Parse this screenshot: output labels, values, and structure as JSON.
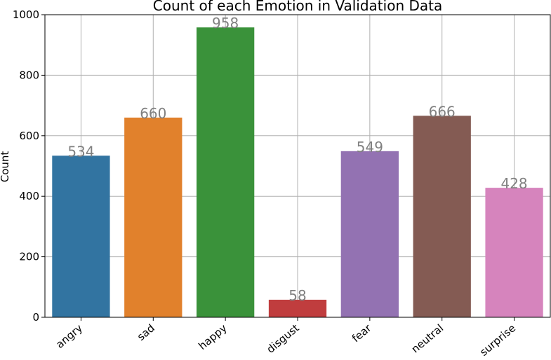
{
  "chart_data": {
    "type": "bar",
    "title": "Count of each Emotion in Validation Data",
    "xlabel": "",
    "ylabel": "Count",
    "ylim": [
      0,
      1000
    ],
    "yticks": [
      0,
      200,
      400,
      600,
      800,
      1000
    ],
    "grid": true,
    "categories": [
      "angry",
      "sad",
      "happy",
      "disgust",
      "fear",
      "neutral",
      "surprise"
    ],
    "values": [
      534,
      660,
      958,
      58,
      549,
      666,
      428
    ],
    "colors": [
      "#3274a1",
      "#e1812c",
      "#3a923a",
      "#c03d3e",
      "#9372b2",
      "#845b53",
      "#d684bd"
    ],
    "data_label_color": "#808080"
  }
}
